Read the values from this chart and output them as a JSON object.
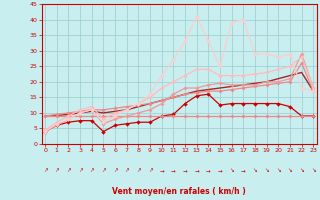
{
  "bg_color": "#c8eef0",
  "grid_color": "#99cccc",
  "xlabel": "Vent moyen/en rafales ( km/h )",
  "tick_color": "#cc0000",
  "xlim": [
    -0.3,
    23.3
  ],
  "ylim": [
    0,
    45
  ],
  "yticks": [
    0,
    5,
    10,
    15,
    20,
    25,
    30,
    35,
    40,
    45
  ],
  "xticks": [
    0,
    1,
    2,
    3,
    4,
    5,
    6,
    7,
    8,
    9,
    10,
    11,
    12,
    13,
    14,
    15,
    16,
    17,
    18,
    19,
    20,
    21,
    22,
    23
  ],
  "lines": [
    {
      "x": [
        0,
        1,
        2,
        3,
        4,
        5,
        6,
        7,
        8,
        9,
        10,
        11,
        12,
        13,
        14,
        15,
        16,
        17,
        18,
        19,
        20,
        21,
        22,
        23
      ],
      "y": [
        4,
        6,
        7,
        7.5,
        7.5,
        4,
        6,
        6.5,
        7,
        7,
        9,
        9.5,
        13,
        15.5,
        16,
        12.5,
        13,
        13,
        13,
        13,
        13,
        12,
        9,
        9
      ],
      "color": "#cc0000",
      "lw": 0.9,
      "marker": "D",
      "ms": 2.0
    },
    {
      "x": [
        0,
        1,
        2,
        3,
        4,
        5,
        6,
        7,
        8,
        9,
        10,
        11,
        12,
        13,
        14,
        15,
        16,
        17,
        18,
        19,
        20,
        21,
        22,
        23
      ],
      "y": [
        9,
        9,
        9,
        9,
        9,
        9,
        9,
        9,
        9,
        9,
        9,
        9,
        9,
        9,
        9,
        9,
        9,
        9,
        9,
        9,
        9,
        9,
        9,
        9
      ],
      "color": "#ee8888",
      "lw": 0.9,
      "marker": "D",
      "ms": 1.8
    },
    {
      "x": [
        0,
        1,
        2,
        3,
        4,
        5,
        6,
        7,
        8,
        9,
        10,
        11,
        12,
        13,
        14,
        15,
        16,
        17,
        18,
        19,
        20,
        21,
        22,
        23
      ],
      "y": [
        9,
        9.5,
        10,
        10.5,
        11,
        11,
        11.5,
        12,
        12.5,
        13,
        14,
        15,
        16,
        16.5,
        17,
        17,
        17.5,
        18,
        18.5,
        19,
        19.5,
        20,
        26,
        17
      ],
      "color": "#ee8888",
      "lw": 0.9,
      "marker": "D",
      "ms": 1.8
    },
    {
      "x": [
        0,
        1,
        2,
        3,
        4,
        5,
        6,
        7,
        8,
        9,
        10,
        11,
        12,
        13,
        14,
        15,
        16,
        17,
        18,
        19,
        20,
        21,
        22,
        23
      ],
      "y": [
        4,
        6,
        8,
        10,
        11,
        6.5,
        8,
        9,
        10,
        11,
        13,
        16,
        18,
        18,
        19,
        19.5,
        19,
        19,
        19,
        20,
        20,
        21,
        29,
        18
      ],
      "color": "#ee9999",
      "lw": 0.9,
      "marker": "D",
      "ms": 1.8
    },
    {
      "x": [
        0,
        1,
        2,
        3,
        4,
        5,
        6,
        7,
        8,
        9,
        10,
        11,
        12,
        13,
        14,
        15,
        16,
        17,
        18,
        19,
        20,
        21,
        22,
        23
      ],
      "y": [
        4.5,
        7,
        9,
        11,
        12,
        8,
        10,
        11,
        13,
        15,
        18,
        20,
        22,
        24,
        24,
        22,
        22,
        22,
        22.5,
        23,
        24,
        25,
        28,
        18
      ],
      "color": "#ffbbbb",
      "lw": 0.9,
      "marker": "D",
      "ms": 1.8
    },
    {
      "x": [
        0,
        1,
        2,
        3,
        4,
        5,
        6,
        7,
        8,
        9,
        10,
        11,
        12,
        13,
        14,
        15,
        16,
        17,
        18,
        19,
        20,
        21,
        22,
        23
      ],
      "y": [
        4,
        6.5,
        8,
        10,
        11,
        7,
        9,
        11,
        13,
        16,
        22,
        27,
        33,
        41,
        33,
        25,
        39,
        40,
        29,
        29,
        28,
        29,
        18,
        17
      ],
      "color": "#ffcccc",
      "lw": 0.9,
      "marker": "D",
      "ms": 2.0
    },
    {
      "x": [
        0,
        1,
        2,
        3,
        4,
        5,
        6,
        7,
        8,
        9,
        10,
        11,
        12,
        13,
        14,
        15,
        16,
        17,
        18,
        19,
        20,
        21,
        22,
        23
      ],
      "y": [
        9,
        9.2,
        9.5,
        10,
        10.5,
        10,
        10.5,
        11,
        12,
        13,
        14,
        15,
        16,
        17,
        17.5,
        18,
        18.5,
        19,
        19.5,
        20,
        21,
        22,
        23,
        17
      ],
      "color": "#aa2222",
      "lw": 1.0,
      "marker": null,
      "ms": 0
    }
  ],
  "arrows": {
    "symbols": [
      "↗",
      "↗",
      "↗",
      "↗",
      "↗",
      "↗",
      "↗",
      "↗",
      "↗",
      "↗",
      "→",
      "→",
      "→",
      "→",
      "→",
      "→",
      "↘",
      "→",
      "↘",
      "↘",
      "↘",
      "↘",
      "↘",
      "↘"
    ],
    "color": "#cc0000"
  }
}
